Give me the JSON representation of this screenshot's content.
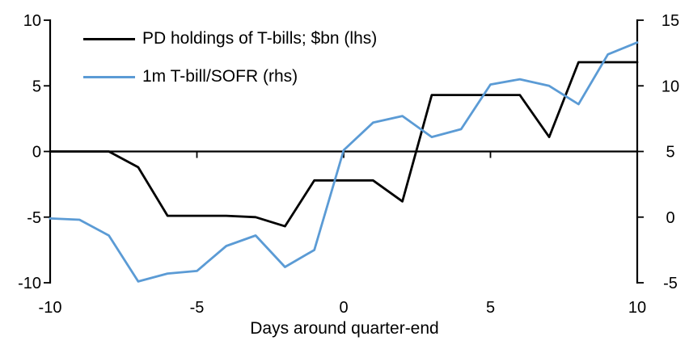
{
  "chart_data": {
    "type": "line",
    "title": "",
    "xlabel": "Days around quarter-end",
    "background": "#FFFFFF",
    "axis_color": "#000000",
    "grid": false,
    "legend_position": "top-left",
    "x": [
      -10,
      -9,
      -8,
      -7,
      -6,
      -5,
      -4,
      -3,
      -2,
      -1,
      0,
      1,
      2,
      3,
      4,
      5,
      6,
      7,
      8,
      9,
      10
    ],
    "series": [
      {
        "name": "PD holdings of T-bills; $bn (lhs)",
        "axis": "left",
        "color": "#000000",
        "values": [
          0,
          0,
          0,
          -1.2,
          -4.9,
          -4.9,
          -4.9,
          -5,
          -5.7,
          -2.2,
          -2.2,
          -2.2,
          -3.8,
          4.3,
          4.3,
          4.3,
          4.3,
          1.1,
          6.8,
          6.8,
          6.8
        ]
      },
      {
        "name": "1m T-bill/SOFR (rhs)",
        "axis": "right",
        "color": "#5B9BD5",
        "values": [
          -0.1,
          -0.2,
          -1.4,
          -4.9,
          -4.3,
          -4.1,
          -2.2,
          -1.4,
          -3.8,
          -2.5,
          5.1,
          7.2,
          7.7,
          6.1,
          6.7,
          10.1,
          10.5,
          10,
          8.6,
          12.4,
          13.3
        ]
      }
    ],
    "left_axis": {
      "min": -10,
      "max": 10,
      "ticks": [
        10,
        5,
        0,
        -5,
        -10
      ]
    },
    "right_axis": {
      "min": -5,
      "max": 15,
      "ticks": [
        15,
        10,
        5,
        0,
        -5
      ]
    },
    "x_axis": {
      "min": -10,
      "max": 10,
      "ticks": [
        -10,
        -5,
        0,
        5,
        10
      ],
      "label": "Days around quarter-end"
    },
    "legend": {
      "items": [
        {
          "label": "PD holdings of T-bills; $bn (lhs)",
          "color": "#000000"
        },
        {
          "label": "1m T-bill/SOFR (rhs)",
          "color": "#5B9BD5"
        }
      ]
    }
  }
}
